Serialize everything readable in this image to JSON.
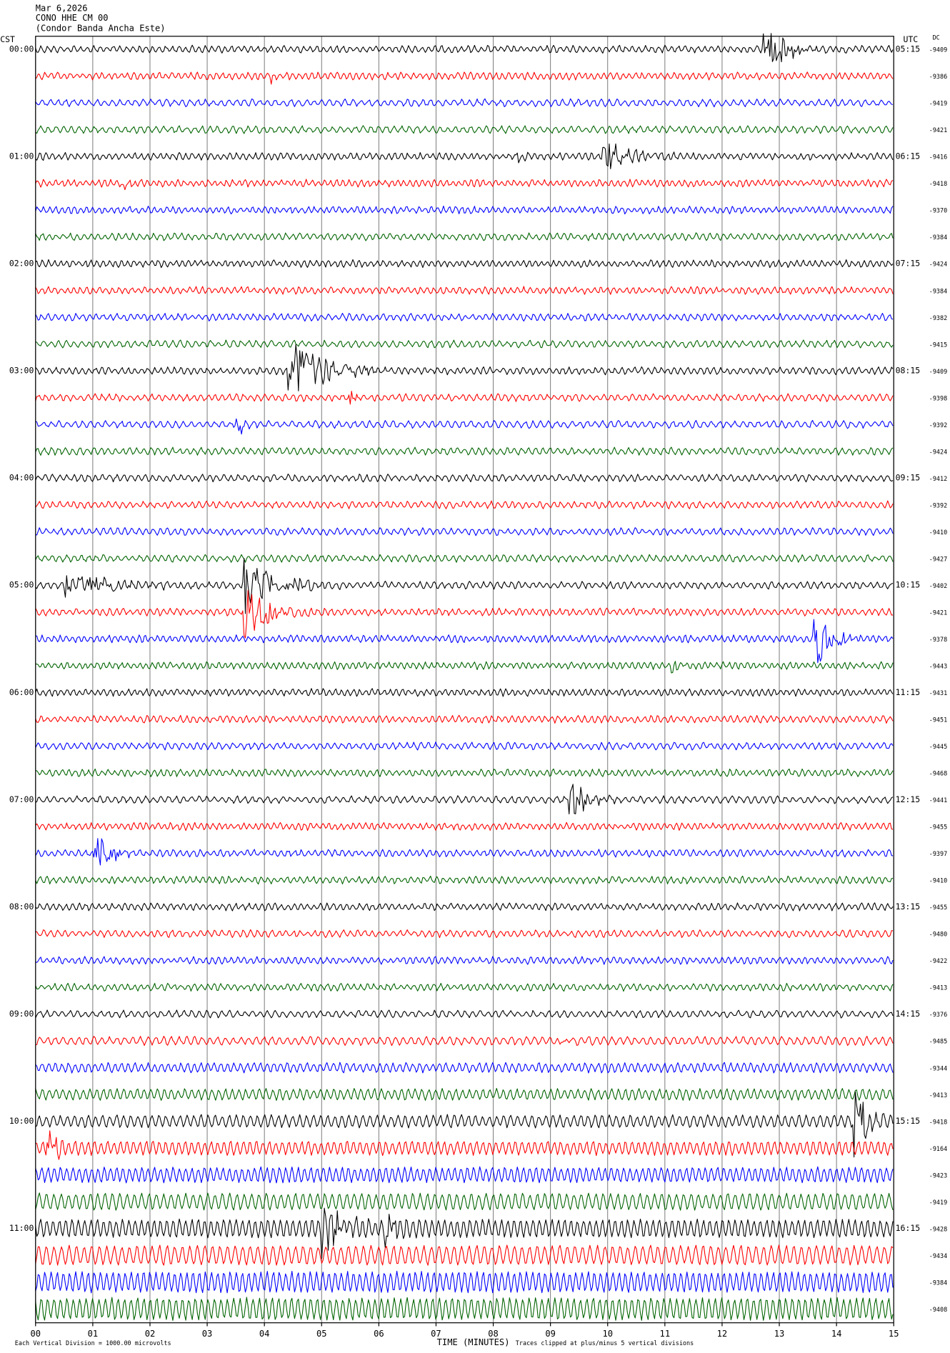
{
  "header": {
    "date": "Mar 6,2026",
    "station": "CONO HHE CM 00",
    "name": "(Condor Banda Ancha Este)"
  },
  "left_axis": {
    "title": "CST",
    "labels": [
      "00:00",
      "01:00",
      "02:00",
      "03:00",
      "04:00",
      "05:00",
      "06:00",
      "07:00",
      "08:00",
      "09:00",
      "10:00",
      "11:00"
    ]
  },
  "right_axis": {
    "title": "UTC",
    "labels": [
      "05:15",
      "06:15",
      "07:15",
      "08:15",
      "09:15",
      "10:15",
      "11:15",
      "12:15",
      "13:15",
      "14:15",
      "15:15",
      "16:15"
    ],
    "dc_title": "DC",
    "dc_values": [
      -9409,
      -9386,
      -9419,
      -9421,
      -9416,
      -9418,
      -9370,
      -9384,
      -9424,
      -9384,
      -9382,
      -9415,
      -9409,
      -9398,
      -9392,
      -9424,
      -9412,
      -9392,
      -9410,
      -9427,
      -9402,
      -9421,
      -9378,
      -9443,
      -9431,
      -9451,
      -9445,
      -9468,
      -9441,
      -9455,
      -9397,
      -9410,
      -9455,
      -9480,
      -9422,
      -9413,
      -9376,
      -9485,
      -9344,
      -9413,
      -9418,
      -9164,
      -9423,
      -9419,
      -9428,
      -9434,
      -9384,
      -9408
    ]
  },
  "x_axis": {
    "labels": [
      "00",
      "01",
      "02",
      "03",
      "04",
      "05",
      "06",
      "07",
      "08",
      "09",
      "10",
      "11",
      "12",
      "13",
      "14",
      "15"
    ],
    "title": "TIME (MINUTES)"
  },
  "footer": {
    "scale": "Each Vertical Division = 1000.00 microvolts",
    "clip": "Traces clipped at plus/minus 5 vertical divisions"
  },
  "trace_colors": [
    "#000000",
    "#ff0000",
    "#0000ff",
    "#006400"
  ]
}
